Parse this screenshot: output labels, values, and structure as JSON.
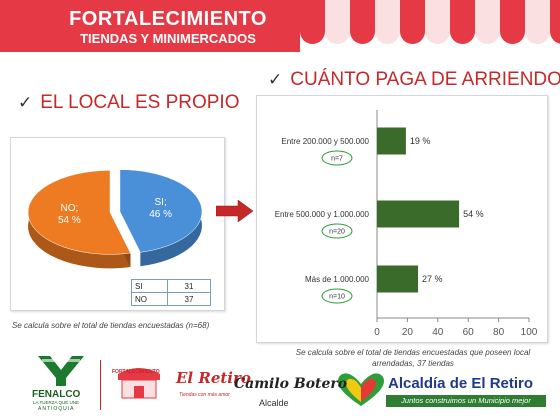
{
  "banner": {
    "title_line1": "FORTALECIMIENTO",
    "title_line2": "TIENDAS Y MINIMERCADOS"
  },
  "left_section": {
    "heading": "EL LOCAL ES PROPIO",
    "note": "Se calcula sobre el total de tiendas encuestadas (n=68)"
  },
  "right_section": {
    "heading": "CUÁNTO PAGA DE ARRIENDO",
    "note_line1": "Se calcula sobre el total de tiendas encuestadas que poseen local",
    "note_line2": "arrendadas, 37 tiendas"
  },
  "colors": {
    "banner_red": "#e63946",
    "heading_red": "#c62828",
    "pie_blue": "#4a90d9",
    "pie_orange": "#ee7a22",
    "bar_green": "#3b6b2a",
    "n_circle_green": "#2e9e3a"
  },
  "chart_data": [
    {
      "type": "pie",
      "title": "",
      "slices": [
        {
          "label": "SI",
          "value": 46,
          "display": "SI;\n46 %",
          "color": "#4a90d9"
        },
        {
          "label": "NO",
          "value": 54,
          "display": "NO;\n54 %",
          "color": "#ee7a22"
        }
      ],
      "table": [
        {
          "label": "SI",
          "count": "31"
        },
        {
          "label": "NO",
          "count": "37"
        }
      ]
    },
    {
      "type": "bar",
      "orientation": "horizontal",
      "title": "",
      "categories": [
        "Entre 200.000 y 500.000",
        "Entre 500.000 y 1.000.000",
        "Más de 1.000.000"
      ],
      "values": [
        19,
        54,
        27
      ],
      "value_labels": [
        "19 %",
        "54 %",
        "27 %"
      ],
      "n_labels": [
        "n=7",
        "n=20",
        "n=10"
      ],
      "xlim": [
        0,
        100
      ],
      "xticks": [
        0,
        20,
        40,
        60,
        80,
        100
      ],
      "xlabel": "",
      "ylabel": "",
      "grid": false,
      "bar_color": "#3b6b2a"
    }
  ],
  "footer": {
    "fenalco_name": "FENALCO",
    "fenalco_tagline": "LA FUERZA QUE UNE",
    "fenalco_region": "ANTIOQUIA",
    "mini_logo_text": "FORTALECIMIENTO",
    "retiro_text": "El Retiro",
    "retiro_sub": "Tiendas con más amor",
    "camilo_name": "Camilo Botero",
    "camilo_role": "Alcalde",
    "alcaldia_title": "Alcaldía de El Retiro",
    "alcaldia_slogan": "Juntos construimos un Municipio mejor"
  }
}
